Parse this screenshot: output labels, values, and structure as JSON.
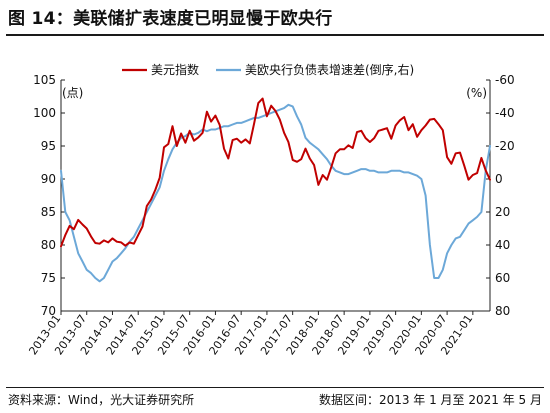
{
  "figure": {
    "title": "图 14：美联储扩表速度已明显慢于欧央行",
    "source": "资料来源：Wind，光大证券研究所",
    "range": "数据区间：2013 年 1 月至 2021 年 5 月"
  },
  "chart_data": {
    "type": "line",
    "left_unit": "(点)",
    "right_unit": "(%)",
    "ylim_left": [
      70,
      105
    ],
    "yticks_left": [
      70,
      75,
      80,
      85,
      90,
      95,
      100,
      105
    ],
    "ylim_right_inverted": [
      80,
      -60
    ],
    "yticks_right": [
      -60,
      -40,
      -20,
      0,
      20,
      40,
      60,
      80
    ],
    "x_start": "2013-01",
    "x_end": "2021-05",
    "x_tick_labels": [
      "2013-01",
      "2013-07",
      "2014-01",
      "2014-07",
      "2015-01",
      "2015-07",
      "2016-01",
      "2016-07",
      "2017-01",
      "2017-07",
      "2018-01",
      "2018-07",
      "2019-01",
      "2019-07",
      "2020-01",
      "2020-07",
      "2021-01"
    ],
    "grid": false,
    "legend_position": "top",
    "series": [
      {
        "name": "美元指数",
        "axis": "left",
        "color": "#c00000",
        "x": [
          "2013-01",
          "2013-02",
          "2013-03",
          "2013-04",
          "2013-05",
          "2013-06",
          "2013-07",
          "2013-08",
          "2013-09",
          "2013-10",
          "2013-11",
          "2013-12",
          "2014-01",
          "2014-02",
          "2014-03",
          "2014-04",
          "2014-05",
          "2014-06",
          "2014-07",
          "2014-08",
          "2014-09",
          "2014-10",
          "2014-11",
          "2014-12",
          "2015-01",
          "2015-02",
          "2015-03",
          "2015-04",
          "2015-05",
          "2015-06",
          "2015-07",
          "2015-08",
          "2015-09",
          "2015-10",
          "2015-11",
          "2015-12",
          "2016-01",
          "2016-02",
          "2016-03",
          "2016-04",
          "2016-05",
          "2016-06",
          "2016-07",
          "2016-08",
          "2016-09",
          "2016-10",
          "2016-11",
          "2016-12",
          "2017-01",
          "2017-02",
          "2017-03",
          "2017-04",
          "2017-05",
          "2017-06",
          "2017-07",
          "2017-08",
          "2017-09",
          "2017-10",
          "2017-11",
          "2017-12",
          "2018-01",
          "2018-02",
          "2018-03",
          "2018-04",
          "2018-05",
          "2018-06",
          "2018-07",
          "2018-08",
          "2018-09",
          "2018-10",
          "2018-11",
          "2018-12",
          "2019-01",
          "2019-02",
          "2019-03",
          "2019-04",
          "2019-05",
          "2019-06",
          "2019-07",
          "2019-08",
          "2019-09",
          "2019-10",
          "2019-11",
          "2019-12",
          "2020-01",
          "2020-02",
          "2020-03",
          "2020-04",
          "2020-05",
          "2020-06",
          "2020-07",
          "2020-08",
          "2020-09",
          "2020-10",
          "2020-11",
          "2020-12",
          "2021-01",
          "2021-02",
          "2021-03",
          "2021-04",
          "2021-05"
        ],
        "y": [
          79.8,
          81.5,
          82.9,
          82.4,
          83.8,
          83.1,
          82.5,
          81.3,
          80.3,
          80.2,
          80.7,
          80.4,
          81.0,
          80.5,
          80.4,
          79.9,
          80.4,
          80.2,
          81.5,
          82.8,
          85.9,
          86.9,
          88.4,
          90.2,
          94.8,
          95.3,
          98.0,
          95.0,
          96.9,
          95.5,
          97.3,
          95.8,
          96.3,
          97.0,
          100.2,
          98.7,
          99.6,
          98.2,
          94.6,
          93.1,
          95.9,
          96.1,
          95.5,
          96.0,
          95.4,
          98.4,
          101.5,
          102.2,
          99.5,
          101.1,
          100.3,
          99.0,
          97.0,
          95.6,
          92.9,
          92.6,
          93.0,
          94.6,
          93.1,
          92.1,
          89.1,
          90.6,
          89.9,
          91.8,
          93.9,
          94.5,
          94.5,
          95.1,
          94.7,
          97.1,
          97.3,
          96.2,
          95.6,
          96.2,
          97.3,
          97.5,
          97.7,
          96.1,
          98.1,
          98.9,
          99.4,
          97.4,
          98.3,
          96.4,
          97.4,
          98.1,
          99.0,
          99.1,
          98.3,
          97.4,
          93.3,
          92.3,
          93.9,
          94.0,
          92.0,
          89.9,
          90.6,
          90.9,
          93.2,
          91.3,
          89.9
        ]
      },
      {
        "name": "美欧央行负债表增速差(倒序,右)",
        "axis": "right",
        "color": "#6ca8d8",
        "x": [
          "2013-01",
          "2013-02",
          "2013-03",
          "2013-04",
          "2013-05",
          "2013-06",
          "2013-07",
          "2013-08",
          "2013-09",
          "2013-10",
          "2013-11",
          "2013-12",
          "2014-01",
          "2014-02",
          "2014-03",
          "2014-04",
          "2014-05",
          "2014-06",
          "2014-07",
          "2014-08",
          "2014-09",
          "2014-10",
          "2014-11",
          "2014-12",
          "2015-01",
          "2015-02",
          "2015-03",
          "2015-04",
          "2015-05",
          "2015-06",
          "2015-07",
          "2015-08",
          "2015-09",
          "2015-10",
          "2015-11",
          "2015-12",
          "2016-01",
          "2016-02",
          "2016-03",
          "2016-04",
          "2016-05",
          "2016-06",
          "2016-07",
          "2016-08",
          "2016-09",
          "2016-10",
          "2016-11",
          "2016-12",
          "2017-01",
          "2017-02",
          "2017-03",
          "2017-04",
          "2017-05",
          "2017-06",
          "2017-07",
          "2017-08",
          "2017-09",
          "2017-10",
          "2017-11",
          "2017-12",
          "2018-01",
          "2018-02",
          "2018-03",
          "2018-04",
          "2018-05",
          "2018-06",
          "2018-07",
          "2018-08",
          "2018-09",
          "2018-10",
          "2018-11",
          "2018-12",
          "2019-01",
          "2019-02",
          "2019-03",
          "2019-04",
          "2019-05",
          "2019-06",
          "2019-07",
          "2019-08",
          "2019-09",
          "2019-10",
          "2019-11",
          "2019-12",
          "2020-01",
          "2020-02",
          "2020-03",
          "2020-04",
          "2020-05",
          "2020-06",
          "2020-07",
          "2020-08",
          "2020-09",
          "2020-10",
          "2020-11",
          "2020-12",
          "2021-01",
          "2021-02",
          "2021-03",
          "2021-04",
          "2021-05"
        ],
        "y": [
          -5,
          20,
          25,
          35,
          45,
          50,
          55,
          57,
          60,
          62,
          60,
          55,
          50,
          48,
          45,
          42,
          38,
          35,
          30,
          25,
          20,
          15,
          10,
          5,
          -5,
          -12,
          -18,
          -22,
          -25,
          -26,
          -28,
          -27,
          -28,
          -30,
          -29,
          -30,
          -30,
          -31,
          -32,
          -32,
          -33,
          -34,
          -34,
          -35,
          -36,
          -37,
          -37,
          -38,
          -39,
          -40,
          -41,
          -42,
          -43,
          -45,
          -44,
          -38,
          -33,
          -25,
          -22,
          -20,
          -18,
          -15,
          -12,
          -8,
          -5,
          -4,
          -3,
          -3,
          -4,
          -5,
          -6,
          -6,
          -5,
          -5,
          -4,
          -4,
          -4,
          -5,
          -5,
          -5,
          -4,
          -4,
          -3,
          -2,
          0,
          10,
          40,
          60,
          60,
          55,
          45,
          40,
          36,
          35,
          31,
          27,
          25,
          23,
          20,
          -5,
          -20
        ]
      }
    ]
  }
}
